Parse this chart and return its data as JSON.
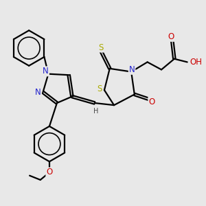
{
  "background_color": "#e8e8e8",
  "atom_colors": {
    "C": "#000000",
    "N": "#2222cc",
    "O": "#cc0000",
    "S": "#aaaa00",
    "H": "#444444"
  },
  "bond_color": "#000000",
  "bond_width": 1.6,
  "font_size_atoms": 8.5,
  "font_size_small": 7.0
}
